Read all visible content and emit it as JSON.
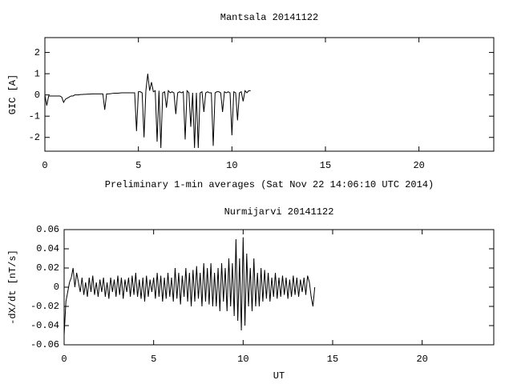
{
  "chart_data": [
    {
      "type": "line",
      "title": "Mantsala 20141122",
      "xlabel": "Preliminary 1-min averages (Sat Nov 22 14:06:10 UTC 2014)",
      "ylabel": "GIC [A]",
      "color": "#000000",
      "xlim": [
        0,
        24
      ],
      "ylim": [
        -2.65,
        2.7
      ],
      "xticks": [
        0,
        5,
        10,
        15,
        20
      ],
      "yticks": [
        -2,
        -1,
        0,
        1,
        2
      ],
      "grid": false,
      "x": [
        0,
        0.1,
        0.2,
        0.3,
        0.4,
        0.5,
        0.6,
        0.7,
        0.8,
        0.9,
        1,
        1.1,
        1.2,
        1.3,
        1.4,
        1.5,
        1.6,
        1.7,
        1.8,
        1.9,
        2,
        2.1,
        2.2,
        2.3,
        2.4,
        2.5,
        2.6,
        2.7,
        2.8,
        2.9,
        3,
        3.1,
        3.2,
        3.3,
        3.4,
        3.5,
        3.6,
        3.7,
        3.8,
        3.9,
        4,
        4.1,
        4.2,
        4.3,
        4.4,
        4.5,
        4.6,
        4.7,
        4.8,
        4.9,
        5,
        5.1,
        5.2,
        5.3,
        5.4,
        5.5,
        5.6,
        5.7,
        5.8,
        5.9,
        6,
        6.1,
        6.2,
        6.3,
        6.4,
        6.5,
        6.6,
        6.7,
        6.8,
        6.9,
        7,
        7.1,
        7.2,
        7.3,
        7.4,
        7.5,
        7.6,
        7.7,
        7.8,
        7.9,
        8,
        8.1,
        8.2,
        8.3,
        8.4,
        8.5,
        8.6,
        8.7,
        8.8,
        8.9,
        9,
        9.1,
        9.2,
        9.3,
        9.4,
        9.5,
        9.6,
        9.7,
        9.8,
        9.9,
        10,
        10.1,
        10.2,
        10.3,
        10.4,
        10.5,
        10.6,
        10.7,
        10.8,
        10.9,
        11
      ],
      "values": [
        0,
        -0.5,
        -0.05,
        -0.05,
        -0.05,
        -0.05,
        -0.05,
        -0.05,
        -0.05,
        -0.1,
        -0.35,
        -0.2,
        -0.15,
        -0.1,
        -0.05,
        -0.05,
        0,
        0,
        0,
        0.02,
        0.02,
        0.03,
        0.03,
        0.04,
        0.04,
        0.05,
        0.05,
        0.05,
        0.05,
        0.05,
        0.05,
        0.05,
        -0.7,
        0.05,
        0.05,
        0.06,
        0.07,
        0.08,
        0.08,
        0.08,
        0.09,
        0.1,
        0.1,
        0.1,
        0.1,
        0.1,
        0.1,
        0.1,
        0.1,
        -1.7,
        0.15,
        0.15,
        0.1,
        -2.0,
        0.2,
        1.0,
        0.2,
        0.6,
        0.15,
        0.2,
        -2.2,
        0.2,
        -2.5,
        0.1,
        0.15,
        -0.6,
        0.2,
        0.1,
        0.15,
        0.1,
        -0.9,
        0.1,
        0.15,
        0.1,
        0.15,
        -2.1,
        0.2,
        0.1,
        -1.5,
        0.1,
        -2.5,
        0.1,
        -2.5,
        0.1,
        0.15,
        -0.8,
        0.1,
        0.15,
        0.1,
        0.1,
        -2.4,
        0.1,
        0.15,
        0.15,
        0.1,
        -0.8,
        0.15,
        0.1,
        0.15,
        0.1,
        -1.9,
        0.15,
        0.1,
        -1.2,
        0.1,
        0.15,
        -0.3,
        0.2,
        0.1,
        0.2,
        0.2
      ]
    },
    {
      "type": "line",
      "title": "Nurmijarvi 20141122",
      "xlabel": "UT",
      "ylabel": "-dX/dt [nT/s]",
      "color": "#000000",
      "xlim": [
        0,
        24
      ],
      "ylim": [
        -0.06,
        0.06
      ],
      "xticks": [
        0,
        5,
        10,
        15,
        20
      ],
      "yticks": [
        -0.06,
        -0.04,
        -0.02,
        0,
        0.02,
        0.04,
        0.06
      ],
      "grid": false,
      "x": [
        0,
        0.1,
        0.2,
        0.3,
        0.4,
        0.5,
        0.6,
        0.7,
        0.8,
        0.9,
        1,
        1.1,
        1.2,
        1.3,
        1.4,
        1.5,
        1.6,
        1.7,
        1.8,
        1.9,
        2,
        2.1,
        2.2,
        2.3,
        2.4,
        2.5,
        2.6,
        2.7,
        2.8,
        2.9,
        3,
        3.1,
        3.2,
        3.3,
        3.4,
        3.5,
        3.6,
        3.7,
        3.8,
        3.9,
        4,
        4.1,
        4.2,
        4.3,
        4.4,
        4.5,
        4.6,
        4.7,
        4.8,
        4.9,
        5,
        5.1,
        5.2,
        5.3,
        5.4,
        5.5,
        5.6,
        5.7,
        5.8,
        5.9,
        6,
        6.1,
        6.2,
        6.3,
        6.4,
        6.5,
        6.6,
        6.7,
        6.8,
        6.9,
        7,
        7.1,
        7.2,
        7.3,
        7.4,
        7.5,
        7.6,
        7.7,
        7.8,
        7.9,
        8,
        8.1,
        8.2,
        8.3,
        8.4,
        8.5,
        8.6,
        8.7,
        8.8,
        8.9,
        9,
        9.1,
        9.2,
        9.3,
        9.4,
        9.5,
        9.6,
        9.7,
        9.8,
        9.9,
        10,
        10.1,
        10.2,
        10.3,
        10.4,
        10.5,
        10.6,
        10.7,
        10.8,
        10.9,
        11,
        11.1,
        11.2,
        11.3,
        11.4,
        11.5,
        11.6,
        11.7,
        11.8,
        11.9,
        12,
        12.1,
        12.2,
        12.3,
        12.4,
        12.5,
        12.6,
        12.7,
        12.8,
        12.9,
        13,
        13.1,
        13.2,
        13.3,
        13.4,
        13.5,
        13.6,
        13.7,
        13.8,
        13.9,
        14
      ],
      "values": [
        -0.05,
        -0.015,
        -0.005,
        0.005,
        0.01,
        0.02,
        0,
        0.015,
        0.005,
        -0.005,
        0.01,
        -0.008,
        0.005,
        -0.01,
        0.01,
        -0.005,
        0.012,
        -0.008,
        0.005,
        -0.01,
        0.008,
        -0.005,
        0.01,
        -0.01,
        0.005,
        -0.012,
        0.01,
        -0.005,
        0.008,
        -0.01,
        0.012,
        -0.008,
        0.01,
        -0.012,
        0.008,
        -0.005,
        0.01,
        -0.01,
        0.012,
        -0.008,
        0.015,
        -0.01,
        0.008,
        -0.012,
        0.01,
        -0.015,
        0.012,
        -0.01,
        0.008,
        -0.005,
        0.01,
        -0.012,
        0.015,
        -0.01,
        0.012,
        -0.015,
        0.01,
        -0.012,
        0.015,
        -0.01,
        0.01,
        -0.015,
        0.02,
        -0.012,
        0.015,
        -0.018,
        0.012,
        -0.01,
        0.02,
        -0.015,
        0.015,
        -0.02,
        0.018,
        -0.015,
        0.022,
        -0.012,
        0.015,
        -0.02,
        0.025,
        -0.015,
        0.02,
        -0.018,
        0.025,
        -0.02,
        0.015,
        -0.02,
        0.02,
        -0.025,
        0.025,
        -0.015,
        0.02,
        -0.025,
        0.03,
        -0.02,
        0.025,
        -0.03,
        0.05,
        -0.035,
        0.03,
        -0.045,
        0.052,
        -0.04,
        0.035,
        -0.02,
        0.02,
        -0.025,
        0.03,
        -0.02,
        0.015,
        -0.02,
        0.02,
        -0.015,
        0.018,
        -0.012,
        0.015,
        -0.015,
        0.01,
        -0.01,
        0.015,
        -0.012,
        0.01,
        -0.01,
        0.012,
        -0.008,
        0.01,
        -0.012,
        0.008,
        -0.01,
        0.012,
        -0.008,
        0.01,
        -0.01,
        0.008,
        -0.005,
        0.01,
        -0.008,
        0.012,
        0.005,
        -0.01,
        -0.02,
        0
      ]
    }
  ]
}
